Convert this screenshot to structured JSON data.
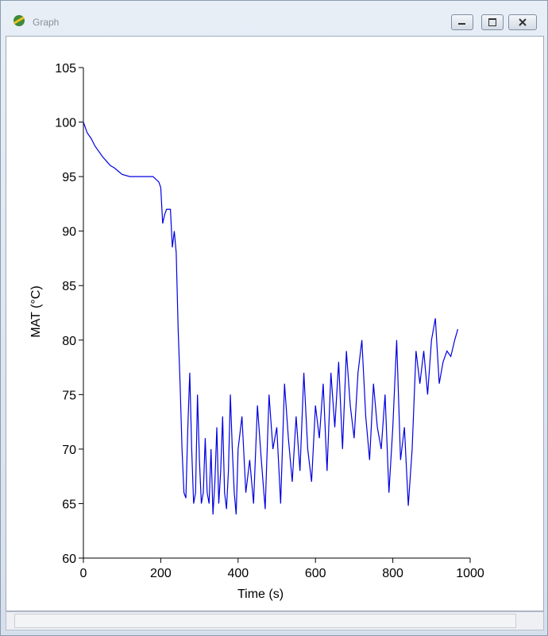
{
  "window": {
    "title": "Graph"
  },
  "chart_data": {
    "type": "line",
    "x_label": "Time (s)",
    "y_label": "MAT (°C)",
    "x": [
      0,
      5,
      10,
      20,
      30,
      40,
      50,
      60,
      70,
      80,
      90,
      100,
      120,
      140,
      160,
      180,
      195,
      200,
      205,
      210,
      215,
      225,
      230,
      235,
      240,
      245,
      250,
      255,
      260,
      265,
      270,
      275,
      280,
      285,
      290,
      295,
      300,
      305,
      310,
      315,
      320,
      325,
      330,
      335,
      340,
      345,
      350,
      355,
      360,
      365,
      370,
      375,
      380,
      385,
      390,
      395,
      400,
      410,
      420,
      430,
      440,
      450,
      460,
      470,
      480,
      490,
      500,
      510,
      520,
      530,
      540,
      550,
      560,
      570,
      580,
      590,
      600,
      610,
      620,
      630,
      640,
      650,
      660,
      670,
      680,
      690,
      700,
      710,
      720,
      730,
      740,
      750,
      760,
      770,
      780,
      790,
      800,
      810,
      820,
      830,
      840,
      850,
      860,
      870,
      880,
      890,
      900,
      910,
      920,
      930,
      940,
      950,
      960,
      968
    ],
    "series": [
      {
        "name": "MAT",
        "color": "#0000e0",
        "values": [
          100,
          99.5,
          99,
          98.5,
          97.8,
          97.3,
          96.8,
          96.4,
          96,
          95.8,
          95.5,
          95.2,
          95,
          95,
          95,
          95,
          94.5,
          94,
          90.7,
          91.5,
          92,
          92,
          88.5,
          90,
          88,
          81,
          76,
          70,
          66,
          65.5,
          72,
          77,
          70,
          65,
          66,
          75,
          69,
          65,
          66,
          71,
          66,
          65,
          70,
          64,
          67,
          72,
          65,
          68,
          73,
          66,
          64.5,
          68,
          75,
          70,
          66,
          64,
          70,
          73,
          66,
          69,
          65,
          74,
          69,
          64.5,
          75,
          70,
          72,
          65,
          76,
          71,
          67,
          73,
          68,
          77,
          70,
          67,
          74,
          71,
          76,
          68,
          77,
          72,
          78,
          70,
          79,
          74,
          71,
          77,
          80,
          73,
          69,
          76,
          72,
          70,
          75,
          66,
          72,
          80,
          69,
          72,
          64.8,
          70,
          79,
          76,
          79,
          75,
          80,
          82,
          76,
          78,
          79,
          78.5,
          80,
          81
        ]
      }
    ],
    "xlim": [
      0,
      1000
    ],
    "xticks": [
      0,
      200,
      400,
      600,
      800,
      1000
    ],
    "ylim": [
      60,
      105
    ],
    "yticks": [
      60,
      65,
      70,
      75,
      80,
      85,
      90,
      95,
      100,
      105
    ],
    "grid": false
  }
}
